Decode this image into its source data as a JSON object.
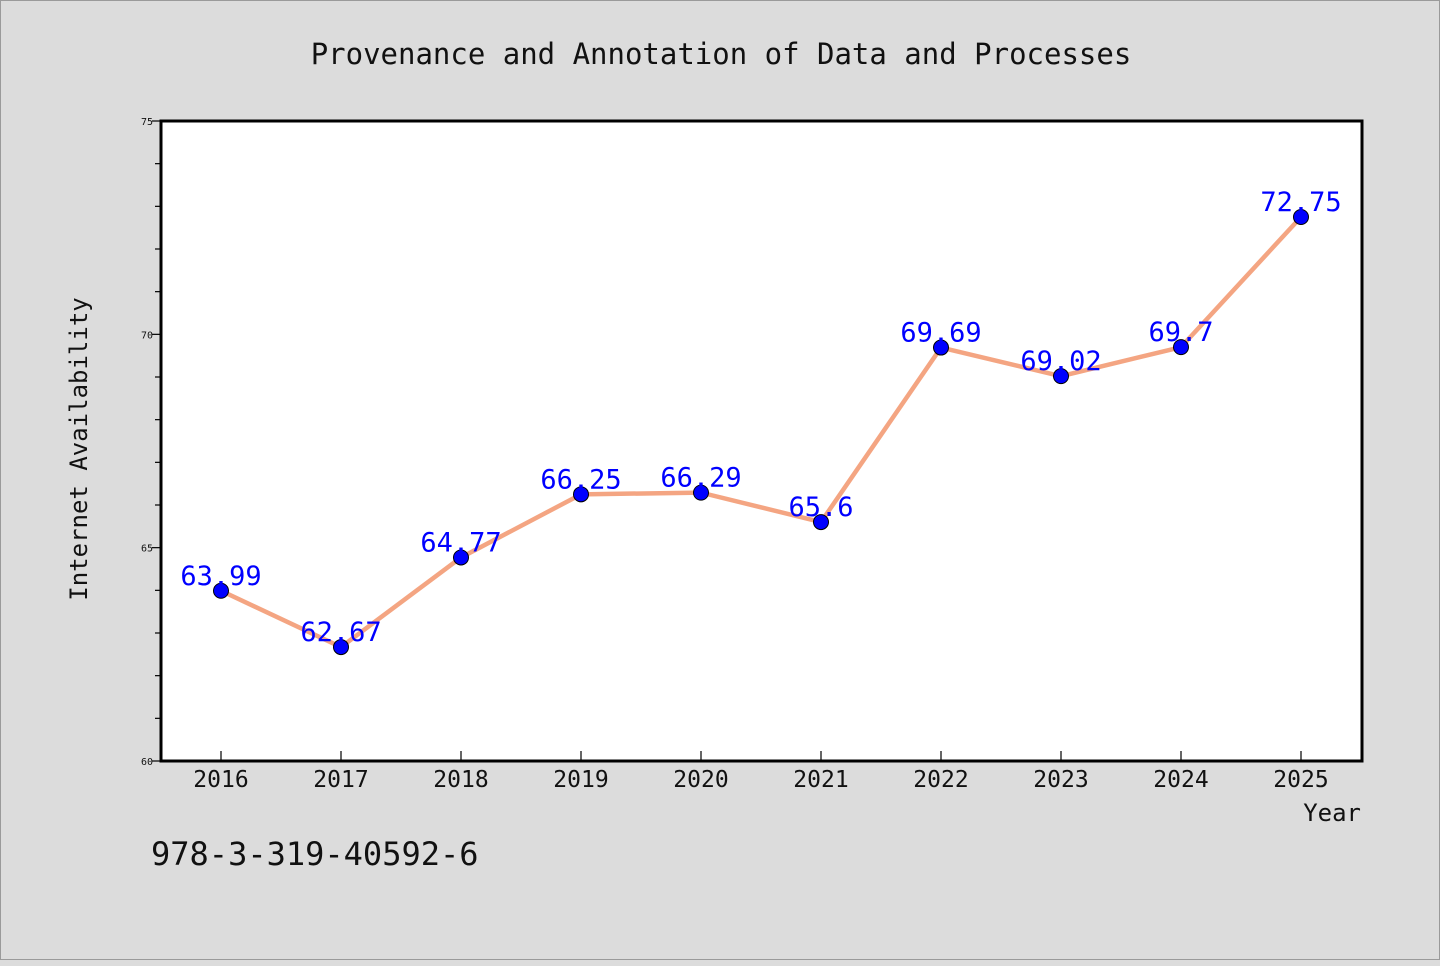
{
  "chart_data": {
    "type": "line",
    "title": "Provenance and Annotation of Data and Processes",
    "xlabel": "Year",
    "ylabel": "Internet Availability",
    "categories": [
      "2016",
      "2017",
      "2018",
      "2019",
      "2020",
      "2021",
      "2022",
      "2023",
      "2024",
      "2025"
    ],
    "series": [
      {
        "values": [
          63.99,
          62.67,
          64.77,
          66.25,
          66.29,
          65.6,
          69.69,
          69.02,
          69.7,
          72.75
        ],
        "labels": [
          "63.99",
          "62.67",
          "64.77",
          "66.25",
          "66.29",
          "65.6",
          "69.69",
          "69.02",
          "69.7",
          "72.75"
        ],
        "line_color": "#f4a582",
        "marker_color": "#0000ff"
      }
    ],
    "ylim": [
      60,
      75
    ],
    "yticks": [
      "60",
      "65",
      "70",
      "75"
    ],
    "grid": false,
    "legend": "none",
    "label_color": "#0000ff",
    "background": "#dcdcdc",
    "plot_background": "#ffffff"
  },
  "annotation": {
    "text": "978-3-319-40592-6"
  }
}
